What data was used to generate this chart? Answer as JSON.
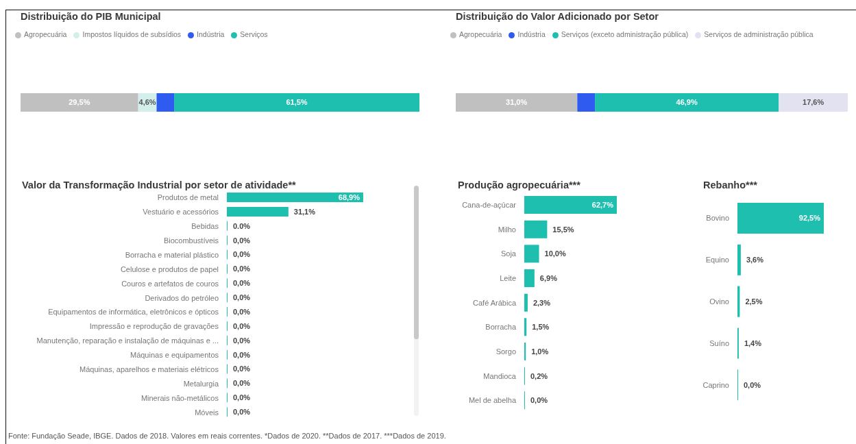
{
  "chart_data": [
    {
      "type": "bar",
      "title": "Distribuição do PIB Municipal",
      "orientation": "horizontal",
      "stacked": true,
      "categories": [
        null
      ],
      "legend": "top left",
      "series": [
        {
          "name": "Agropecuária",
          "color": "#c0c0c0",
          "values": [
            29.5
          ],
          "value_labels": [
            "29,5%"
          ]
        },
        {
          "name": "Impostos líquidos de subsídios",
          "color": "#d3efec",
          "values": [
            4.6
          ],
          "value_labels": [
            "4,6%"
          ]
        },
        {
          "name": "Indústria",
          "color": "#2f5bf0",
          "values": [
            4.4
          ],
          "value_labels": [
            null
          ]
        },
        {
          "name": "Serviços",
          "color": "#1fbfb0",
          "values": [
            61.5
          ],
          "value_labels": [
            "61,5%"
          ]
        }
      ]
    },
    {
      "type": "bar",
      "title": "Distribuição do Valor Adicionado por Setor",
      "orientation": "horizontal",
      "stacked": true,
      "categories": [
        null
      ],
      "legend": "top left",
      "series": [
        {
          "name": "Agropecuária",
          "color": "#c0c0c0",
          "values": [
            31.0
          ],
          "value_labels": [
            "31,0%"
          ]
        },
        {
          "name": "Indústria",
          "color": "#2f5bf0",
          "values": [
            4.5
          ],
          "value_labels": [
            null
          ]
        },
        {
          "name": "Serviços (exceto administração pública)",
          "color": "#1fbfb0",
          "values": [
            46.9
          ],
          "value_labels": [
            "46,9%"
          ]
        },
        {
          "name": "Serviços de administração pública",
          "color": "#e2e2f0",
          "values": [
            17.6
          ],
          "value_labels": [
            "17,6%"
          ]
        }
      ]
    },
    {
      "type": "bar",
      "title": "Valor da Transformação Industrial por setor de atividade**",
      "orientation": "horizontal",
      "color": "#1fbfb0",
      "categories": [
        "Produtos de metal",
        "Vestuário e acessórios",
        "Bebidas",
        "Biocombustíveis",
        "Borracha e material plástico",
        "Celulose e produtos de papel",
        "Couros e artefatos de couros",
        "Derivados do petróleo",
        "Equipamentos de informática, eletrônicos e ópticos",
        "Impressão e reprodução de gravações",
        "Manutenção, reparação e instalação de máquinas e ...",
        "Máquinas e equipamentos",
        "Máquinas, aparelhos e materiais elétricos",
        "Metalurgia",
        "Minerais não-metálicos",
        "Móveis"
      ],
      "values": [
        68.9,
        31.1,
        0,
        0,
        0,
        0,
        0,
        0,
        0,
        0,
        0,
        0,
        0,
        0,
        0,
        0
      ],
      "value_labels": [
        "68,9%",
        "31,1%",
        "0.0%",
        "0,0%",
        "0,0%",
        "0,0%",
        "0,0%",
        "0,0%",
        "0,0%",
        "0,0%",
        "0,0%",
        "0,0%",
        "0,0%",
        "0,0%",
        "0,0%",
        "0,0%"
      ]
    },
    {
      "type": "bar",
      "title": "Produção agropecuária***",
      "orientation": "horizontal",
      "color": "#1fbfb0",
      "categories": [
        "Cana-de-açúcar",
        "Milho",
        "Soja",
        "Leite",
        "Café Arábica",
        "Borracha",
        "Sorgo",
        "Mandioca",
        "Mel de abelha"
      ],
      "values": [
        62.7,
        15.5,
        10.0,
        6.9,
        2.3,
        1.5,
        1.0,
        0.2,
        0.0
      ],
      "value_labels": [
        "62,7%",
        "15,5%",
        "10,0%",
        "6,9%",
        "2,3%",
        "1,5%",
        "1,0%",
        "0,2%",
        "0,0%"
      ]
    },
    {
      "type": "bar",
      "title": "Rebanho***",
      "orientation": "horizontal",
      "color": "#1fbfb0",
      "categories": [
        "Bovino",
        "Equino",
        "Ovino",
        "Suíno",
        "Caprino"
      ],
      "values": [
        92.5,
        3.6,
        2.5,
        1.4,
        0.0
      ],
      "value_labels": [
        "92,5%",
        "3,6%",
        "2,5%",
        "1,4%",
        "0,0%"
      ],
      "annotations": [
        "Fonte: Fundação Seade, IBGE. Dados de 2018. Valores em reais correntes. *Dados de 2020. **Dados de 2017. ***Dados de 2019."
      ]
    }
  ]
}
